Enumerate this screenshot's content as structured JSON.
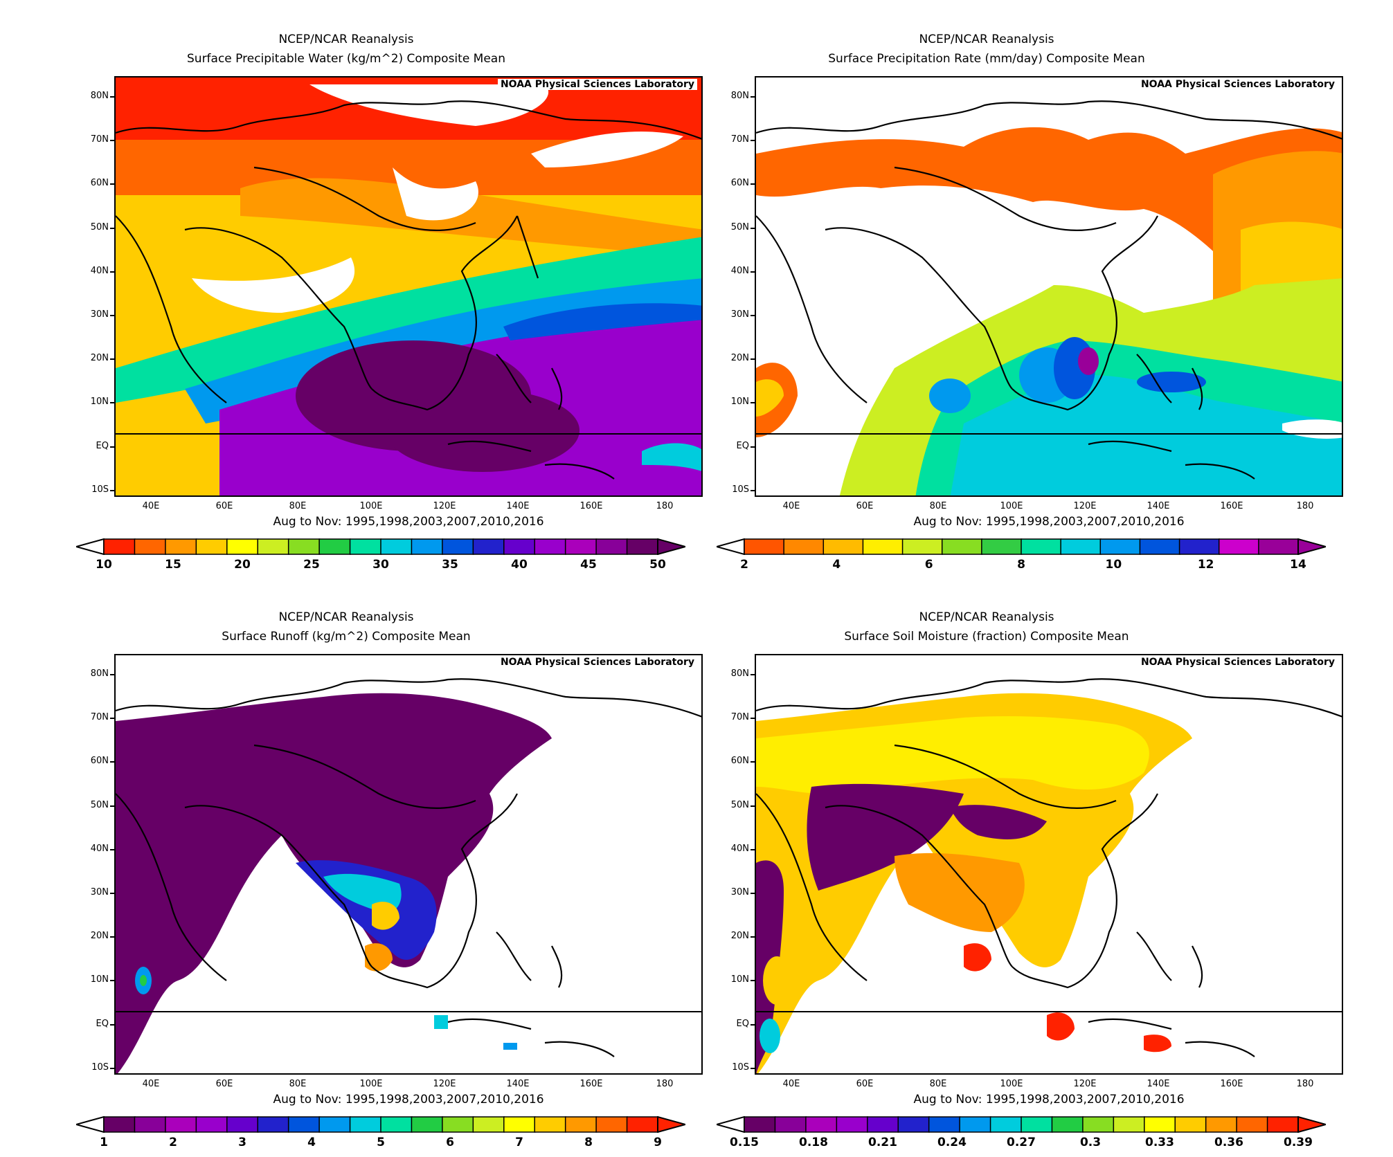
{
  "panels": [
    {
      "id": "precipitable-water",
      "title_line1": "NCEP/NCAR Reanalysis",
      "title_line2": "Surface Precipitable Water (kg/m^2) Composite Mean",
      "credit": "NOAA Physical Sciences Laboratory",
      "subtitle": "Aug to Nov: 1995,1998,2003,2007,2010,2016",
      "colorbar": {
        "labels": [
          "10",
          "15",
          "20",
          "25",
          "30",
          "35",
          "40",
          "45",
          "50"
        ],
        "colors": [
          "#ff2200",
          "#ff6600",
          "#ff9900",
          "#ffcc00",
          "#ffff00",
          "#ccee22",
          "#88dd22",
          "#22cc44",
          "#00e0a0",
          "#00ccdd",
          "#0099ee",
          "#0055dd",
          "#2222cc",
          "#6600cc",
          "#9900cc",
          "#aa00bb",
          "#880099",
          "#660066"
        ]
      }
    },
    {
      "id": "precipitation-rate",
      "title_line1": "NCEP/NCAR Reanalysis",
      "title_line2": "Surface Precipitation Rate (mm/day) Composite Mean",
      "credit": "NOAA Physical Sciences Laboratory",
      "subtitle": "Aug to Nov: 1995,1998,2003,2007,2010,2016",
      "colorbar": {
        "labels": [
          "2",
          "4",
          "6",
          "8",
          "10",
          "12",
          "14"
        ],
        "colors": [
          "#ff5500",
          "#ff8800",
          "#ffbb00",
          "#ffee00",
          "#ccee22",
          "#88dd22",
          "#33cc44",
          "#00e0a0",
          "#00ccdd",
          "#0099ee",
          "#0055dd",
          "#2222cc",
          "#cc00cc",
          "#990099"
        ]
      }
    },
    {
      "id": "runoff",
      "title_line1": "NCEP/NCAR Reanalysis",
      "title_line2": "Surface Runoff (kg/m^2) Composite Mean",
      "credit": "NOAA Physical Sciences Laboratory",
      "subtitle": "Aug to Nov: 1995,1998,2003,2007,2010,2016",
      "colorbar": {
        "labels": [
          "1",
          "2",
          "3",
          "4",
          "5",
          "6",
          "7",
          "8",
          "9"
        ],
        "colors": [
          "#660066",
          "#880099",
          "#aa00bb",
          "#9900cc",
          "#6600cc",
          "#2222cc",
          "#0055dd",
          "#0099ee",
          "#00ccdd",
          "#00e0a0",
          "#22cc44",
          "#88dd22",
          "#ccee22",
          "#ffff00",
          "#ffcc00",
          "#ff9900",
          "#ff6600",
          "#ff2200"
        ]
      }
    },
    {
      "id": "soil-moisture",
      "title_line1": "NCEP/NCAR Reanalysis",
      "title_line2": "Surface Soil Moisture (fraction) Composite Mean",
      "credit": "NOAA Physical Sciences Laboratory",
      "subtitle": "Aug to Nov: 1995,1998,2003,2007,2010,2016",
      "colorbar": {
        "labels": [
          "0.15",
          "0.18",
          "0.21",
          "0.24",
          "0.27",
          "0.3",
          "0.33",
          "0.36",
          "0.39"
        ],
        "colors": [
          "#660066",
          "#880099",
          "#aa00bb",
          "#9900cc",
          "#6600cc",
          "#2222cc",
          "#0055dd",
          "#0099ee",
          "#00ccdd",
          "#00e0a0",
          "#22cc44",
          "#88dd22",
          "#ccee22",
          "#ffff00",
          "#ffcc00",
          "#ff9900",
          "#ff6600",
          "#ff2200"
        ]
      }
    }
  ],
  "axes": {
    "lat_labels": [
      "80N",
      "70N",
      "60N",
      "50N",
      "40N",
      "30N",
      "20N",
      "10N",
      "EQ",
      "10S"
    ],
    "lon_labels": [
      "40E",
      "60E",
      "80E",
      "100E",
      "120E",
      "140E",
      "160E",
      "180"
    ]
  }
}
